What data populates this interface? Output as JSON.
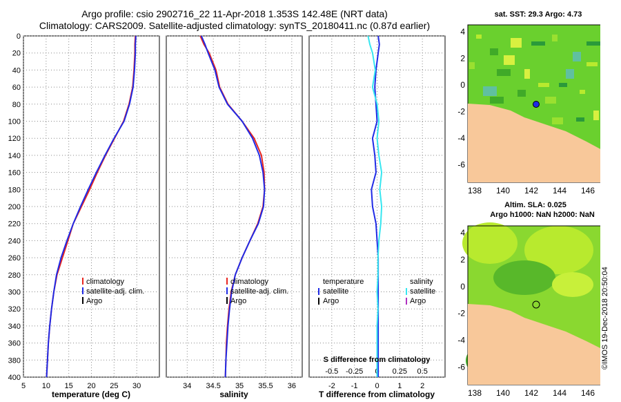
{
  "title_line1": "Argo profile: csio 2902716_22 11-Apr-2018 1.353S 142.48E (NRT data)",
  "title_line2": "Climatology: CARS2009. Satellite-adjusted climatology: synTS_20180411.nc (0.87d earlier)",
  "colors": {
    "climatology": "#e8251f",
    "satellite": "#1f2ae6",
    "argo": "#000000",
    "sat_salinity": "#36e6f0",
    "argo_salinity": "#b030c0",
    "land": "#f8c89a",
    "ocean_dark": "#1e8a2a",
    "ocean_mid": "#60cc2e",
    "ocean_light": "#b8ea2e"
  },
  "depth_ticks": [
    "0",
    "20",
    "40",
    "60",
    "80",
    "100",
    "120",
    "140",
    "160",
    "180",
    "200",
    "220",
    "240",
    "260",
    "280",
    "300",
    "320",
    "340",
    "360",
    "380",
    "400"
  ],
  "legend": {
    "climatology": "climatology",
    "satellite": "satellite-adj. clim.",
    "argo": "Argo"
  },
  "diff_legend": {
    "temperature": "temperature",
    "salinity": "salinity",
    "satellite_t": "satellite",
    "argo_t": "Argo",
    "satellite_s": "satellite",
    "argo_s": "Argo"
  },
  "sst_map": {
    "title": "sat. SST: 29.3 Argo: 4.73",
    "lat_ticks": [
      "4",
      "2",
      "0",
      "-2",
      "-4",
      "-6"
    ],
    "lon_ticks": [
      "138",
      "140",
      "142",
      "144",
      "146"
    ]
  },
  "sla_map": {
    "title1": "Altim. SLA: 0.025",
    "title2": "Argo h1000: NaN h2000: NaN",
    "lat_ticks": [
      "4",
      "2",
      "0",
      "-2",
      "-4",
      "-6"
    ],
    "lon_ticks": [
      "138",
      "140",
      "142",
      "144",
      "146"
    ]
  },
  "side_label": "©IMOS 19-Dec-2018 20:50:04",
  "chart_data": [
    {
      "type": "line",
      "xlabel": "temperature (deg C)",
      "ylabel": "",
      "xlim": [
        5,
        35
      ],
      "ylim": [
        0,
        400
      ],
      "x_ticks": [
        "5",
        "10",
        "15",
        "20",
        "25",
        "30"
      ],
      "series": [
        {
          "name": "climatology",
          "depth": [
            0,
            10,
            20,
            40,
            60,
            80,
            100,
            120,
            140,
            160,
            180,
            200,
            220,
            240,
            260,
            280,
            300,
            320,
            340,
            360,
            380,
            400
          ],
          "values": [
            29.7,
            29.6,
            29.6,
            29.4,
            29.1,
            28.3,
            27.1,
            25.1,
            23.1,
            21.3,
            19.6,
            17.8,
            16.0,
            14.8,
            13.6,
            12.4,
            11.7,
            11.2,
            10.8,
            10.5,
            10.3,
            10.1
          ]
        },
        {
          "name": "satellite-adj. clim.",
          "depth": [
            0,
            10,
            20,
            40,
            60,
            80,
            100,
            120,
            140,
            160,
            180,
            200,
            220,
            240,
            260,
            280,
            300,
            320,
            340,
            360,
            380,
            400
          ],
          "values": [
            29.8,
            29.7,
            29.7,
            29.5,
            29.2,
            28.4,
            27.2,
            25.0,
            23.0,
            21.1,
            19.3,
            17.6,
            16.0,
            14.6,
            13.3,
            12.3,
            11.7,
            11.2,
            10.8,
            10.5,
            10.3,
            10.1
          ]
        }
      ]
    },
    {
      "type": "line",
      "xlabel": "salinity",
      "xlim": [
        33.6,
        36.2
      ],
      "ylim": [
        0,
        400
      ],
      "x_ticks": [
        "34",
        "34.5",
        "35",
        "35.5",
        "36"
      ],
      "series": [
        {
          "name": "climatology",
          "depth": [
            0,
            10,
            20,
            40,
            60,
            80,
            100,
            120,
            140,
            160,
            180,
            200,
            220,
            240,
            260,
            280,
            300,
            320,
            340,
            360,
            380,
            400
          ],
          "values": [
            34.25,
            34.32,
            34.42,
            34.55,
            34.62,
            34.78,
            35.05,
            35.28,
            35.42,
            35.47,
            35.48,
            35.45,
            35.35,
            35.2,
            35.05,
            34.92,
            34.84,
            34.8,
            34.77,
            34.75,
            34.74,
            34.73
          ]
        },
        {
          "name": "satellite-adj. clim.",
          "depth": [
            0,
            10,
            20,
            40,
            60,
            80,
            100,
            120,
            140,
            160,
            180,
            200,
            220,
            240,
            260,
            280,
            300,
            320,
            340,
            360,
            380,
            400
          ],
          "values": [
            34.27,
            34.34,
            34.4,
            34.53,
            34.61,
            34.77,
            35.05,
            35.25,
            35.38,
            35.45,
            35.48,
            35.46,
            35.36,
            35.2,
            35.05,
            34.92,
            34.85,
            34.81,
            34.78,
            34.76,
            34.74,
            34.73
          ]
        }
      ]
    },
    {
      "type": "line",
      "xlabel": "T difference from climatology",
      "top_label": "S difference from climatology",
      "xlim": [
        -3,
        3
      ],
      "ylim": [
        0,
        400
      ],
      "x_ticks": [
        "-2",
        "-1",
        "0",
        "1",
        "2"
      ],
      "top_ticks": [
        "-0.5",
        "-0.25",
        "0",
        "0.25",
        "0.5"
      ],
      "series": [
        {
          "name": "temperature satellite",
          "depth": [
            0,
            10,
            20,
            40,
            60,
            80,
            100,
            120,
            140,
            160,
            180,
            200,
            220,
            240,
            260,
            280,
            300,
            320,
            340,
            360,
            380,
            400
          ],
          "values": [
            0.05,
            0.1,
            0.05,
            -0.05,
            -0.1,
            -0.05,
            0.0,
            -0.2,
            -0.1,
            -0.05,
            -0.25,
            -0.2,
            -0.05,
            0.0,
            0.05,
            0.05,
            0.05,
            0.05,
            0.05,
            0.05,
            0.05,
            0.05
          ]
        },
        {
          "name": "salinity satellite",
          "depth": [
            0,
            10,
            20,
            40,
            60,
            80,
            100,
            120,
            140,
            160,
            180,
            200,
            220,
            240,
            260,
            280,
            300,
            320,
            340,
            360,
            380,
            400
          ],
          "values": [
            -0.1,
            -0.08,
            -0.05,
            -0.02,
            -0.05,
            0.0,
            0.02,
            0.0,
            0.02,
            0.05,
            0.03,
            0.05,
            0.04,
            0.02,
            0.01,
            0.01,
            0.0,
            0.01,
            0.0,
            0.0,
            0.0,
            0.0
          ]
        }
      ]
    }
  ]
}
